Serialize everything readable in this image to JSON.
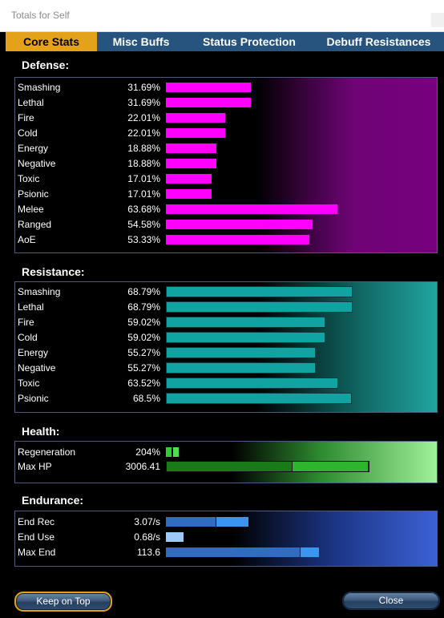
{
  "window": {
    "title": "Totals for Self"
  },
  "tabs": [
    {
      "label": "Core Stats",
      "active": true
    },
    {
      "label": "Misc Buffs",
      "active": false
    },
    {
      "label": "Status Protection",
      "active": false
    },
    {
      "label": "Debuff Resistances",
      "active": false
    }
  ],
  "defense": {
    "title": "Defense:",
    "color": "#ff00ff",
    "rows": [
      {
        "label": "Smashing",
        "value": "31.69%",
        "level": 31.69
      },
      {
        "label": "Lethal",
        "value": "31.69%",
        "level": 31.69
      },
      {
        "label": "Fire",
        "value": "22.01%",
        "level": 22.01
      },
      {
        "label": "Cold",
        "value": "22.01%",
        "level": 22.01
      },
      {
        "label": "Energy",
        "value": "18.88%",
        "level": 18.88
      },
      {
        "label": "Negative",
        "value": "18.88%",
        "level": 18.88
      },
      {
        "label": "Toxic",
        "value": "17.01%",
        "level": 17.01
      },
      {
        "label": "Psionic",
        "value": "17.01%",
        "level": 17.01
      },
      {
        "label": "Melee",
        "value": "63.68%",
        "level": 63.68
      },
      {
        "label": "Ranged",
        "value": "54.58%",
        "level": 54.58
      },
      {
        "label": "AoE",
        "value": "53.33%",
        "level": 53.33
      }
    ]
  },
  "resistance": {
    "title": "Resistance:",
    "color": "#11a3a1",
    "rows": [
      {
        "label": "Smashing",
        "value": "68.79%",
        "level": 68.79
      },
      {
        "label": "Lethal",
        "value": "68.79%",
        "level": 68.79
      },
      {
        "label": "Fire",
        "value": "59.02%",
        "level": 59.02
      },
      {
        "label": "Cold",
        "value": "59.02%",
        "level": 59.02
      },
      {
        "label": "Energy",
        "value": "55.27%",
        "level": 55.27
      },
      {
        "label": "Negative",
        "value": "55.27%",
        "level": 55.27
      },
      {
        "label": "Toxic",
        "value": "63.52%",
        "level": 63.52
      },
      {
        "label": "Psionic",
        "value": "68.5%",
        "level": 68.5
      }
    ]
  },
  "health": {
    "title": "Health:",
    "regen": {
      "label": "Regeneration",
      "value": "204%"
    },
    "maxhp": {
      "label": "Max HP",
      "value": "3006.41"
    }
  },
  "endurance": {
    "title": "Endurance:",
    "endrec": {
      "label": "End Rec",
      "value": "3.07/s"
    },
    "enduse": {
      "label": "End Use",
      "value": "0.68/s"
    },
    "maxend": {
      "label": "Max End",
      "value": "113.6"
    }
  },
  "buttons": {
    "keep_on_top": "Keep on Top",
    "close": "Close"
  }
}
